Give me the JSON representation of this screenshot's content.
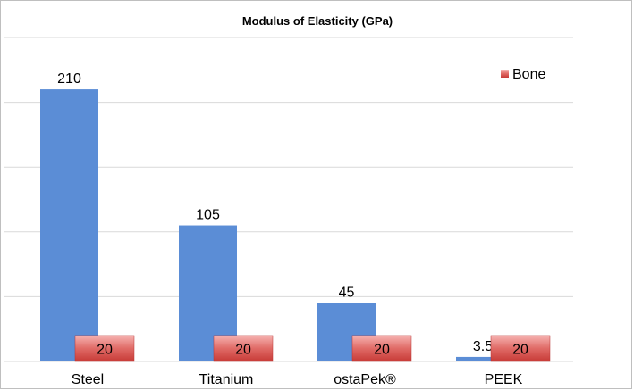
{
  "chart_data": {
    "type": "bar",
    "title": "Modulus of Elasticity (GPa)",
    "categories": [
      "Steel",
      "Titanium",
      "ostaPek®",
      "PEEK"
    ],
    "series": [
      {
        "values": [
          210,
          105,
          45,
          3.5
        ],
        "labels": [
          "210",
          "105",
          "45",
          "3.5"
        ],
        "color": "#5b8dd6"
      },
      {
        "name": "Bone",
        "values": [
          20,
          20,
          20,
          20
        ],
        "labels": [
          "20",
          "20",
          "20",
          "20"
        ],
        "color": "#d9534f"
      }
    ],
    "legend": {
      "position": "top-right",
      "entries": [
        "Bone"
      ]
    },
    "ylim": [
      0,
      250
    ],
    "grid": true,
    "colors": {
      "grid": "#d9d9d9",
      "border": "#bfbfbf",
      "bone_light": "#f2a09e",
      "bone_dark": "#c73a36"
    }
  }
}
